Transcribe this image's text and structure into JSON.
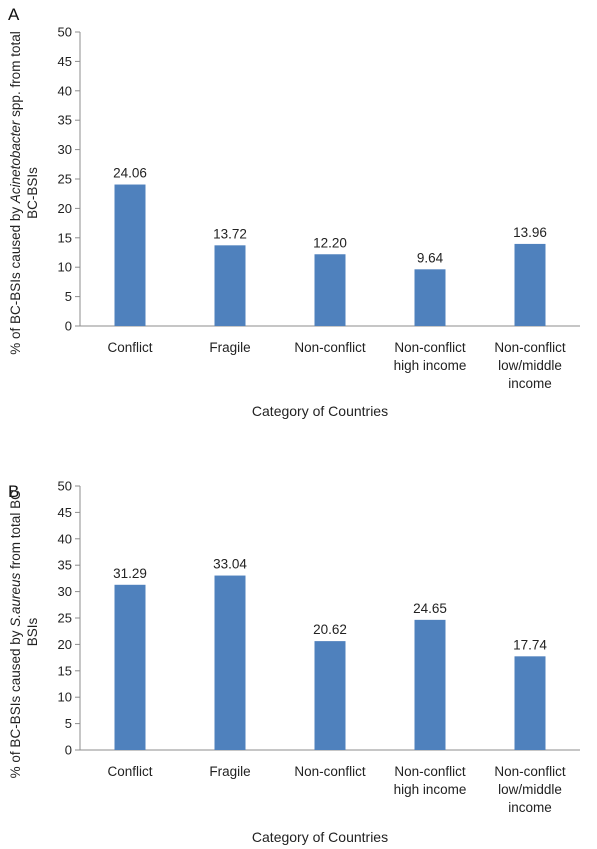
{
  "chart_data": [
    {
      "type": "bar",
      "panel": "A",
      "categories": [
        [
          "Conflict"
        ],
        [
          "Fragile"
        ],
        [
          "Non-conflict"
        ],
        [
          "Non-conflict",
          "high income"
        ],
        [
          "Non-conflict",
          "low/middle",
          "income"
        ]
      ],
      "values": [
        24.06,
        13.72,
        12.2,
        9.64,
        13.96
      ],
      "value_labels": [
        "24.06",
        "13.72",
        "12.20",
        "9.64",
        "13.96"
      ],
      "xlabel": "Category of Countries",
      "ylabel_lines": [
        [
          {
            "t": "% of BC-BSIs caused by ",
            "i": false
          },
          {
            "t": "Acinetobacter",
            "i": true
          },
          {
            "t": " spp. from total",
            "i": false
          }
        ],
        [
          {
            "t": "BC-BSIs",
            "i": false
          }
        ]
      ],
      "ylim": [
        0,
        50
      ],
      "yticks": [
        0,
        5,
        10,
        15,
        20,
        25,
        30,
        35,
        40,
        45,
        50
      ],
      "grid": false,
      "bar_color": "#4f81bd"
    },
    {
      "type": "bar",
      "panel": "B",
      "categories": [
        [
          "Conflict"
        ],
        [
          "Fragile"
        ],
        [
          "Non-conflict"
        ],
        [
          "Non-conflict",
          "high income"
        ],
        [
          "Non-conflict",
          "low/middle",
          "income"
        ]
      ],
      "values": [
        31.29,
        33.04,
        20.62,
        24.65,
        17.74
      ],
      "value_labels": [
        "31.29",
        "33.04",
        "20.62",
        "24.65",
        "17.74"
      ],
      "xlabel": "Category of Countries",
      "ylabel_lines": [
        [
          {
            "t": "% of BC-BSIs caused by ",
            "i": false
          },
          {
            "t": "S.aureus",
            "i": true
          },
          {
            "t": " from total BC-",
            "i": false
          }
        ],
        [
          {
            "t": "BSIs",
            "i": false
          }
        ]
      ],
      "ylim": [
        0,
        50
      ],
      "yticks": [
        0,
        5,
        10,
        15,
        20,
        25,
        30,
        35,
        40,
        45,
        50
      ],
      "grid": false,
      "bar_color": "#4f81bd"
    }
  ]
}
